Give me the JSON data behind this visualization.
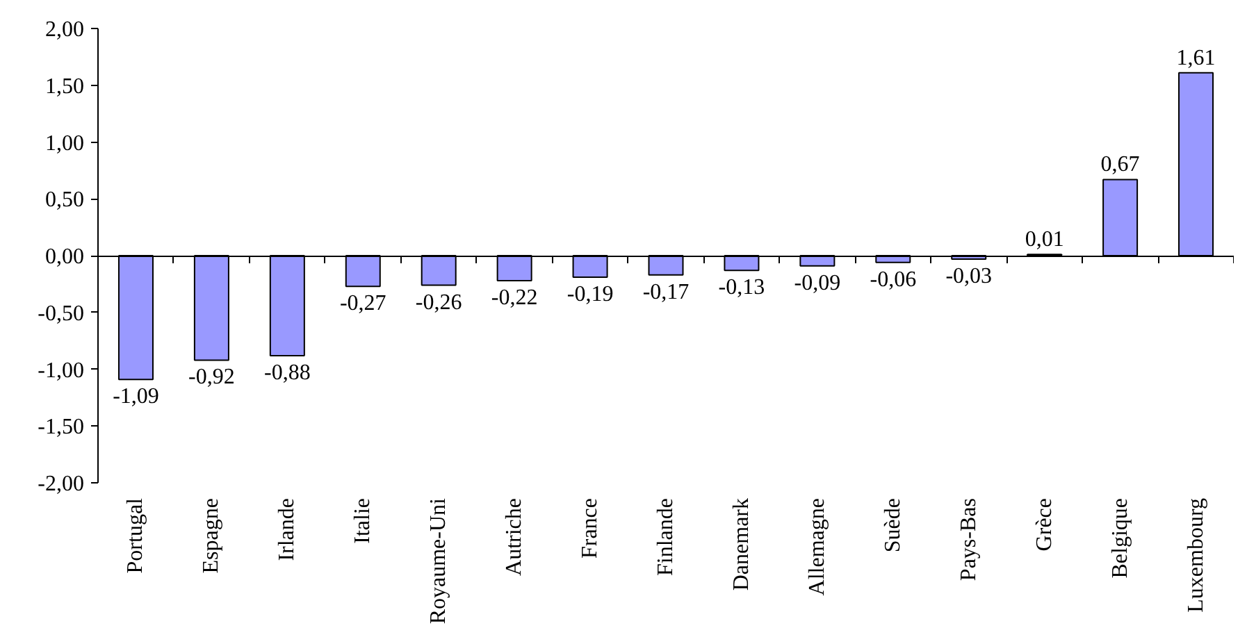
{
  "chart_data": {
    "type": "bar",
    "categories": [
      "Portugal",
      "Espagne",
      "Irlande",
      "Italie",
      "Royaume-Uni",
      "Autriche",
      "France",
      "Finlande",
      "Danemark",
      "Allemagne",
      "Suède",
      "Pays-Bas",
      "Grèce",
      "Belgique",
      "Luxembourg"
    ],
    "values": [
      -1.09,
      -0.92,
      -0.88,
      -0.27,
      -0.26,
      -0.22,
      -0.19,
      -0.17,
      -0.13,
      -0.09,
      -0.06,
      -0.03,
      0.01,
      0.67,
      1.61
    ],
    "value_labels": [
      "-1,09",
      "-0,92",
      "-0,88",
      "-0,27",
      "-0,26",
      "-0,22",
      "-0,19",
      "-0,17",
      "-0,13",
      "-0,09",
      "-0,06",
      "-0,03",
      "0,01",
      "0,67",
      "1,61"
    ],
    "color": "#9999ff",
    "ylim": [
      -2,
      2
    ],
    "yticks": [
      {
        "value": -2,
        "label": "-2,00"
      },
      {
        "value": -1.5,
        "label": "-1,50"
      },
      {
        "value": -1,
        "label": "-1,00"
      },
      {
        "value": -0.5,
        "label": "-0,50"
      },
      {
        "value": 0,
        "label": "0,00"
      },
      {
        "value": 0.5,
        "label": "0,50"
      },
      {
        "value": 1,
        "label": "1,00"
      },
      {
        "value": 1.5,
        "label": "1,50"
      },
      {
        "value": 2,
        "label": "2,00"
      }
    ]
  }
}
